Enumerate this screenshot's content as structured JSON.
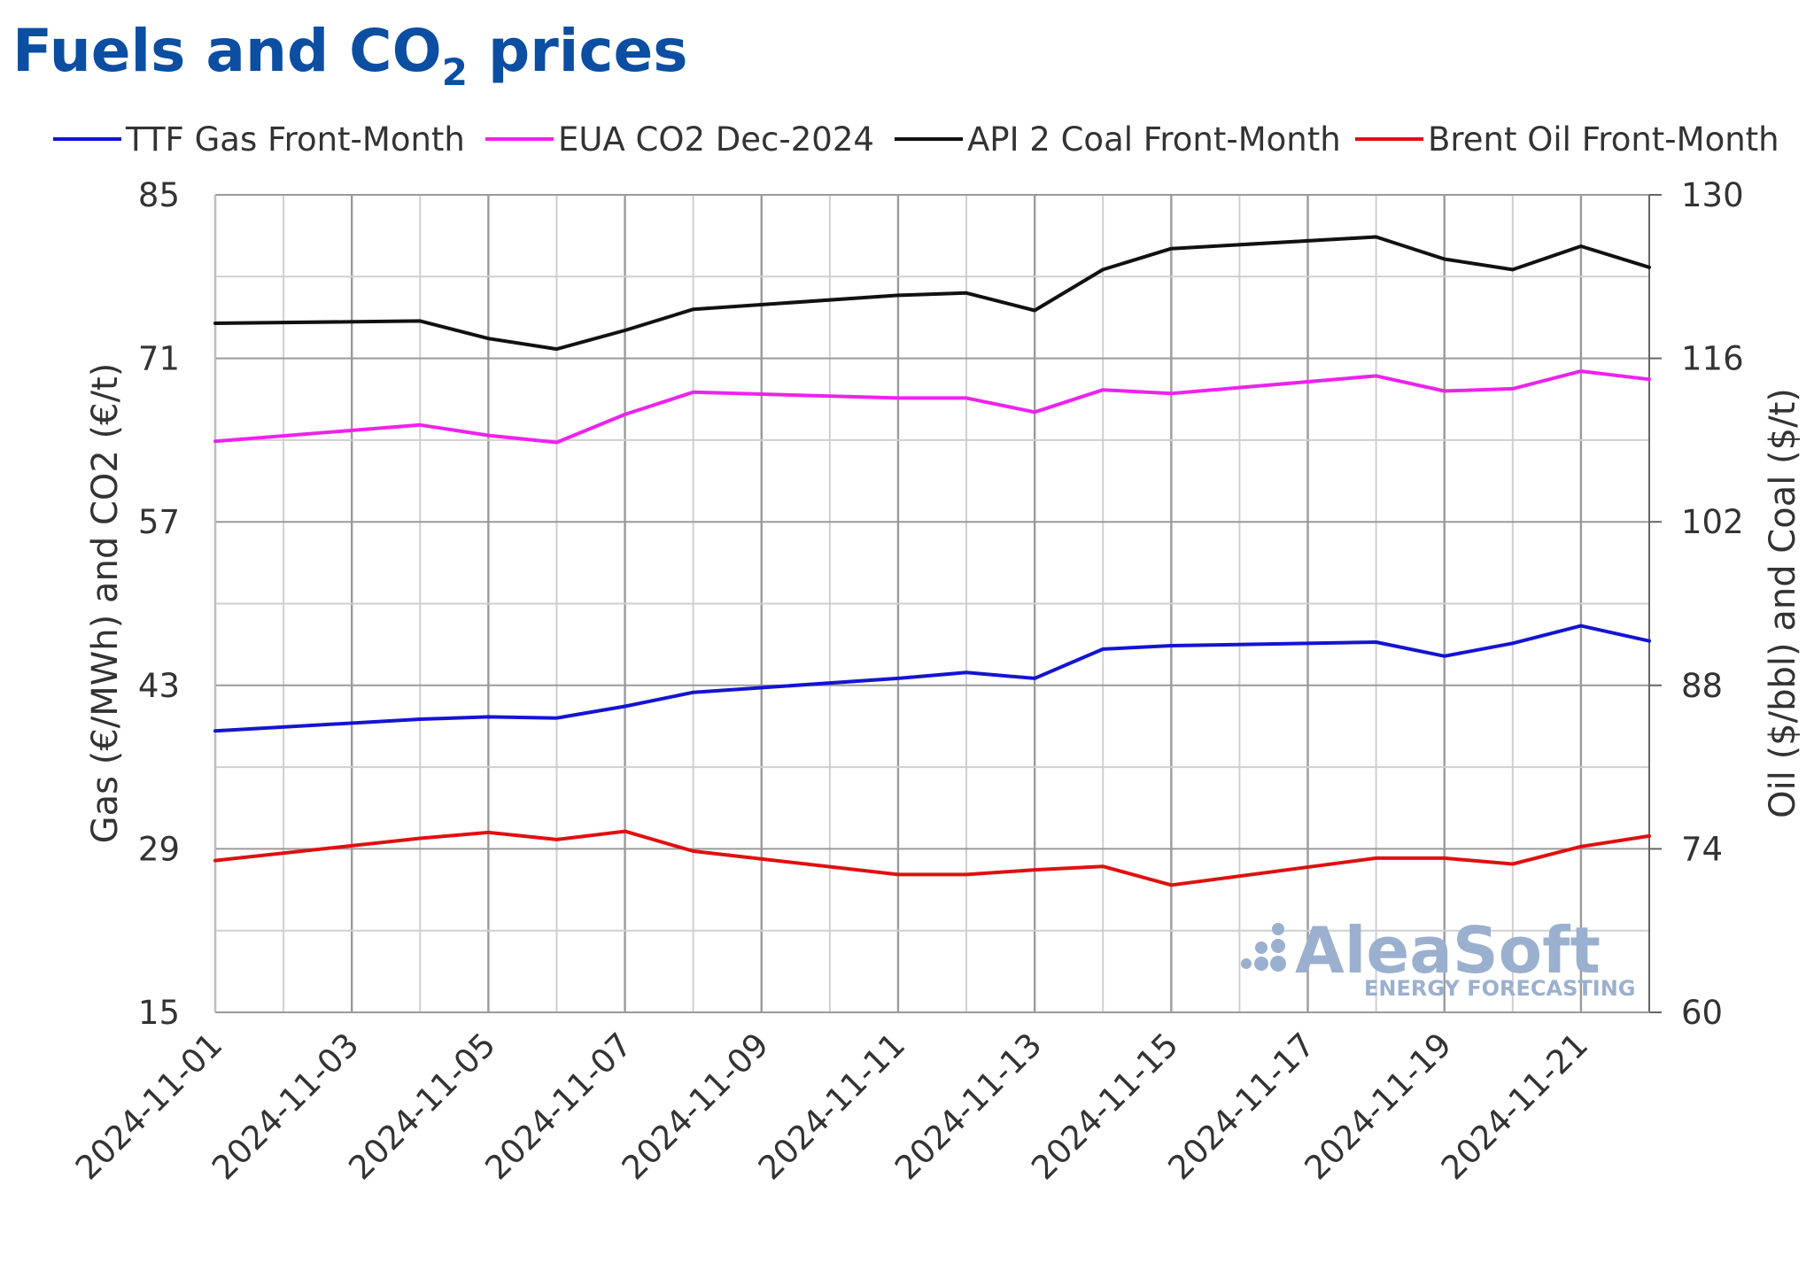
{
  "title": {
    "main": "Fuels and CO",
    "sub": "2",
    "tail": " prices"
  },
  "watermark": {
    "brand": "AleaSoft",
    "tagline": "ENERGY FORECASTING",
    "color": "#9bb0cf"
  },
  "chart_data": {
    "type": "line",
    "legend_position": "top",
    "grid": true,
    "y_left": {
      "label": "Gas (€/MWh) and CO2 (€/t)",
      "range": [
        15,
        85
      ],
      "ticks": [
        "15",
        "29",
        "43",
        "57",
        "71",
        "85"
      ]
    },
    "y_right": {
      "label": "Oil ($/bbl) and Coal ($/t)",
      "range": [
        60,
        130
      ],
      "ticks": [
        "60",
        "74",
        "88",
        "102",
        "116",
        "130"
      ]
    },
    "x_tick_labels": [
      "2024-11-01",
      "2024-11-03",
      "2024-11-05",
      "2024-11-07",
      "2024-11-09",
      "2024-11-11",
      "2024-11-13",
      "2024-11-15",
      "2024-11-17",
      "2024-11-19",
      "2024-11-21"
    ],
    "series": [
      {
        "name": "TTF Gas Front-Month",
        "color": "#1414d2",
        "axis": "left",
        "x": [
          "2024-11-01",
          "2024-11-04",
          "2024-11-05",
          "2024-11-06",
          "2024-11-07",
          "2024-11-08",
          "2024-11-11",
          "2024-11-12",
          "2024-11-13",
          "2024-11-14",
          "2024-11-15",
          "2024-11-18",
          "2024-11-19",
          "2024-11-20",
          "2024-11-21",
          "2024-11-22"
        ],
        "y": [
          39.1,
          40.1,
          40.3,
          40.2,
          41.2,
          42.4,
          43.6,
          44.1,
          43.6,
          46.1,
          46.4,
          46.7,
          45.5,
          46.6,
          48.1,
          46.8
        ]
      },
      {
        "name": "EUA CO2 Dec-2024",
        "color": "#ee22ee",
        "axis": "left",
        "x": [
          "2024-11-01",
          "2024-11-04",
          "2024-11-05",
          "2024-11-06",
          "2024-11-07",
          "2024-11-08",
          "2024-11-11",
          "2024-11-12",
          "2024-11-13",
          "2024-11-14",
          "2024-11-15",
          "2024-11-18",
          "2024-11-19",
          "2024-11-20",
          "2024-11-21",
          "2024-11-22"
        ],
        "y": [
          63.9,
          65.3,
          64.4,
          63.8,
          66.2,
          68.1,
          67.6,
          67.6,
          66.4,
          68.3,
          68.0,
          69.5,
          68.2,
          68.4,
          69.9,
          69.2
        ]
      },
      {
        "name": "API 2 Coal Front-Month",
        "color": "#111111",
        "axis": "right",
        "x": [
          "2024-11-01",
          "2024-11-04",
          "2024-11-05",
          "2024-11-06",
          "2024-11-07",
          "2024-11-08",
          "2024-11-11",
          "2024-11-12",
          "2024-11-13",
          "2024-11-14",
          "2024-11-15",
          "2024-11-18",
          "2024-11-19",
          "2024-11-20",
          "2024-11-21",
          "2024-11-22"
        ],
        "y": [
          119.0,
          119.2,
          117.7,
          116.8,
          118.4,
          120.2,
          121.4,
          121.6,
          120.1,
          123.6,
          125.4,
          126.4,
          124.5,
          123.6,
          125.6,
          123.8
        ]
      },
      {
        "name": "Brent Oil Front-Month",
        "color": "#e01010",
        "axis": "right",
        "x": [
          "2024-11-01",
          "2024-11-04",
          "2024-11-05",
          "2024-11-06",
          "2024-11-07",
          "2024-11-08",
          "2024-11-11",
          "2024-11-12",
          "2024-11-13",
          "2024-11-14",
          "2024-11-15",
          "2024-11-18",
          "2024-11-19",
          "2024-11-20",
          "2024-11-21",
          "2024-11-22"
        ],
        "y": [
          73.0,
          74.9,
          75.4,
          74.8,
          75.5,
          73.8,
          71.8,
          71.8,
          72.2,
          72.5,
          70.9,
          73.2,
          73.2,
          72.7,
          74.2,
          75.1
        ]
      }
    ]
  }
}
